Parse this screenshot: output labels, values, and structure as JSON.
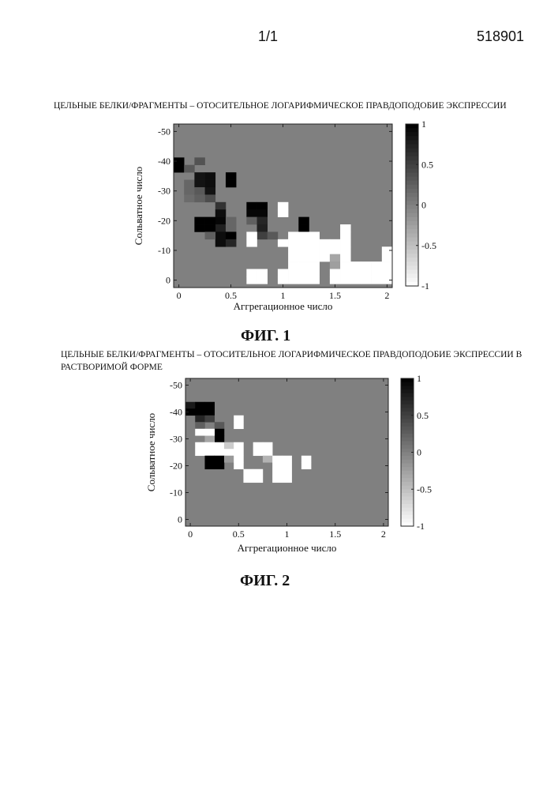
{
  "header": {
    "page_number": "1/1",
    "document_number": "518901"
  },
  "chart_data": [
    {
      "type": "heatmap",
      "title": "ЦЕЛЬНЫЕ БЕЛКИ/ФРАГМЕНТЫ – ОТОСИТЕЛЬНОЕ ЛОГАРИФМИЧЕСКОЕ ПРАВДОПОДОБИЕ ЭКСПРЕССИИ",
      "figure_label": "ФИГ. 1",
      "xlabel": "Аггрегационное число",
      "ylabel": "Сольватное число",
      "xlim": [
        -0.05,
        2.05
      ],
      "ylim": [
        -52.5,
        2.5
      ],
      "x_ticks": [
        "0",
        "0.5",
        "1",
        "1.5",
        "2"
      ],
      "x_tick_values": [
        0,
        0.5,
        1,
        1.5,
        2
      ],
      "y_ticks": [
        "-50",
        "-40",
        "-30",
        "-20",
        "-10",
        "0"
      ],
      "y_tick_values": [
        -50,
        -40,
        -30,
        -20,
        -10,
        0
      ],
      "colorbar_ticks": [
        "1",
        "0.5",
        "0",
        "-0.5",
        "-1"
      ],
      "colorbar_tick_values": [
        1,
        0.5,
        0,
        -0.5,
        -1
      ],
      "clim": [
        -1,
        1
      ],
      "background_value": 0,
      "cell_size": {
        "x": 0.1,
        "y": 2.5
      },
      "cells": [
        {
          "x": 0,
          "y": -40,
          "v": 1
        },
        {
          "x": 0,
          "y": -37.5,
          "v": 1
        },
        {
          "x": 0.1,
          "y": -37.5,
          "v": 0.3
        },
        {
          "x": 0.2,
          "y": -40,
          "v": 0.35
        },
        {
          "x": 0.1,
          "y": -32.5,
          "v": 0.2
        },
        {
          "x": 0.1,
          "y": -30,
          "v": 0.2
        },
        {
          "x": 0.1,
          "y": -27.5,
          "v": 0.15
        },
        {
          "x": 0.2,
          "y": -35,
          "v": 0.85
        },
        {
          "x": 0.2,
          "y": -32.5,
          "v": 0.85
        },
        {
          "x": 0.2,
          "y": -30,
          "v": 0.3
        },
        {
          "x": 0.3,
          "y": -35,
          "v": 0.9
        },
        {
          "x": 0.3,
          "y": -32.5,
          "v": 0.9
        },
        {
          "x": 0.3,
          "y": -30,
          "v": 0.85
        },
        {
          "x": 0.3,
          "y": -27.5,
          "v": 0.4
        },
        {
          "x": 0.2,
          "y": -27.5,
          "v": 0.25
        },
        {
          "x": 0.5,
          "y": -35,
          "v": 1
        },
        {
          "x": 0.5,
          "y": -32.5,
          "v": 1
        },
        {
          "x": 0.4,
          "y": -25,
          "v": 0.6
        },
        {
          "x": 0.4,
          "y": -22.5,
          "v": 0.9
        },
        {
          "x": 0.4,
          "y": -20,
          "v": 0.95
        },
        {
          "x": 0.4,
          "y": -17.5,
          "v": 0.75
        },
        {
          "x": 0.2,
          "y": -20,
          "v": 1
        },
        {
          "x": 0.2,
          "y": -17.5,
          "v": 1
        },
        {
          "x": 0.3,
          "y": -20,
          "v": 1
        },
        {
          "x": 0.3,
          "y": -17.5,
          "v": 1
        },
        {
          "x": 0.5,
          "y": -20,
          "v": 0.2
        },
        {
          "x": 0.5,
          "y": -17.5,
          "v": 0.2
        },
        {
          "x": 0.4,
          "y": -15,
          "v": 0.9
        },
        {
          "x": 0.4,
          "y": -12.5,
          "v": 0.9
        },
        {
          "x": 0.5,
          "y": -15,
          "v": 1
        },
        {
          "x": 0.5,
          "y": -12.5,
          "v": 0.7
        },
        {
          "x": 0.3,
          "y": -15,
          "v": 0.25
        },
        {
          "x": 0.7,
          "y": -25,
          "v": 1
        },
        {
          "x": 0.8,
          "y": -25,
          "v": 1
        },
        {
          "x": 0.7,
          "y": -22.5,
          "v": 0.95
        },
        {
          "x": 0.8,
          "y": -22.5,
          "v": 0.95
        },
        {
          "x": 0.7,
          "y": -20,
          "v": 0.25
        },
        {
          "x": 0.8,
          "y": -20,
          "v": 0.7
        },
        {
          "x": 0.8,
          "y": -17.5,
          "v": 0.75
        },
        {
          "x": 0.8,
          "y": -15,
          "v": 0.5
        },
        {
          "x": 0.9,
          "y": -15,
          "v": 0.3
        },
        {
          "x": 0.7,
          "y": -15,
          "v": -1
        },
        {
          "x": 0.7,
          "y": -12.5,
          "v": -1
        },
        {
          "x": 1.0,
          "y": -25,
          "v": -1
        },
        {
          "x": 1.0,
          "y": -22.5,
          "v": -1
        },
        {
          "x": 1.2,
          "y": -20,
          "v": 1
        },
        {
          "x": 1.2,
          "y": -17.5,
          "v": 1
        },
        {
          "x": 1.0,
          "y": -12.5,
          "v": -1
        },
        {
          "x": 1.1,
          "y": -15,
          "v": -1
        },
        {
          "x": 1.1,
          "y": -12.5,
          "v": -1
        },
        {
          "x": 1.1,
          "y": -10,
          "v": -1
        },
        {
          "x": 1.1,
          "y": -7.5,
          "v": -1
        },
        {
          "x": 1.1,
          "y": -5,
          "v": -1
        },
        {
          "x": 1.1,
          "y": -2.5,
          "v": -1
        },
        {
          "x": 1.1,
          "y": 0,
          "v": -1
        },
        {
          "x": 1.2,
          "y": -15,
          "v": -1
        },
        {
          "x": 1.2,
          "y": -12.5,
          "v": -1
        },
        {
          "x": 1.2,
          "y": -10,
          "v": -1
        },
        {
          "x": 1.2,
          "y": -7.5,
          "v": -1
        },
        {
          "x": 1.2,
          "y": -5,
          "v": -1
        },
        {
          "x": 1.2,
          "y": -2.5,
          "v": -1
        },
        {
          "x": 1.2,
          "y": 0,
          "v": -1
        },
        {
          "x": 1.3,
          "y": -15,
          "v": -1
        },
        {
          "x": 1.3,
          "y": -12.5,
          "v": -1
        },
        {
          "x": 1.3,
          "y": -10,
          "v": -1
        },
        {
          "x": 1.3,
          "y": -7.5,
          "v": -1
        },
        {
          "x": 1.3,
          "y": -5,
          "v": -1
        },
        {
          "x": 1.3,
          "y": -2.5,
          "v": -1
        },
        {
          "x": 1.3,
          "y": 0,
          "v": -1
        },
        {
          "x": 1.4,
          "y": -12.5,
          "v": -1
        },
        {
          "x": 1.4,
          "y": -10,
          "v": -1
        },
        {
          "x": 1.4,
          "y": -7.5,
          "v": -1
        },
        {
          "x": 1.5,
          "y": -12.5,
          "v": -1
        },
        {
          "x": 1.5,
          "y": -10,
          "v": -1
        },
        {
          "x": 1.5,
          "y": -7.5,
          "v": -0.3
        },
        {
          "x": 1.5,
          "y": -5,
          "v": -0.25
        },
        {
          "x": 1.5,
          "y": -2.5,
          "v": -1
        },
        {
          "x": 1.5,
          "y": 0,
          "v": -1
        },
        {
          "x": 1.6,
          "y": -12.5,
          "v": -1
        },
        {
          "x": 1.6,
          "y": -10,
          "v": -1
        },
        {
          "x": 1.6,
          "y": -7.5,
          "v": -1
        },
        {
          "x": 1.6,
          "y": -5,
          "v": -1
        },
        {
          "x": 1.6,
          "y": -2.5,
          "v": -1
        },
        {
          "x": 1.6,
          "y": 0,
          "v": -1
        },
        {
          "x": 1.6,
          "y": -15,
          "v": -1
        },
        {
          "x": 1.6,
          "y": -17.5,
          "v": -1
        },
        {
          "x": 1.7,
          "y": -5,
          "v": -1
        },
        {
          "x": 1.7,
          "y": -2.5,
          "v": -1
        },
        {
          "x": 1.7,
          "y": 0,
          "v": -1
        },
        {
          "x": 1.8,
          "y": -5,
          "v": -1
        },
        {
          "x": 1.8,
          "y": -2.5,
          "v": -1
        },
        {
          "x": 1.8,
          "y": 0,
          "v": -1
        },
        {
          "x": 1.9,
          "y": -5,
          "v": -1
        },
        {
          "x": 1.9,
          "y": -2.5,
          "v": -1
        },
        {
          "x": 1.9,
          "y": 0,
          "v": -1
        },
        {
          "x": 2.0,
          "y": -10,
          "v": -1
        },
        {
          "x": 2.0,
          "y": -7.5,
          "v": -1
        },
        {
          "x": 2.0,
          "y": -5,
          "v": -1
        },
        {
          "x": 2.0,
          "y": -2.5,
          "v": -1
        },
        {
          "x": 2.0,
          "y": 0,
          "v": -1
        },
        {
          "x": 0.7,
          "y": -2.5,
          "v": -1
        },
        {
          "x": 0.8,
          "y": -2.5,
          "v": -1
        },
        {
          "x": 0.7,
          "y": 0,
          "v": -1
        },
        {
          "x": 0.8,
          "y": 0,
          "v": -1
        },
        {
          "x": 1.0,
          "y": -2.5,
          "v": -1
        },
        {
          "x": 1.0,
          "y": 0,
          "v": -1
        }
      ]
    },
    {
      "type": "heatmap",
      "title": "ЦЕЛЬНЫЕ БЕЛКИ/ФРАГМЕНТЫ – ОТОСИТЕЛЬНОЕ ЛОГАРИФМИЧЕСКОЕ ПРАВДОПОДОБИЕ ЭКСПРЕССИИ В РАСТВОРИМОЙ ФОРМЕ",
      "figure_label": "ФИГ. 2",
      "xlabel": "Аггрегационное число",
      "ylabel": "Сольватное число",
      "xlim": [
        -0.05,
        2.05
      ],
      "ylim": [
        -52.5,
        2.5
      ],
      "x_ticks": [
        "0",
        "0.5",
        "1",
        "1.5",
        "2"
      ],
      "x_tick_values": [
        0,
        0.5,
        1,
        1.5,
        2
      ],
      "y_ticks": [
        "-50",
        "-40",
        "-30",
        "-20",
        "-10",
        "0"
      ],
      "y_tick_values": [
        -50,
        -40,
        -30,
        -20,
        -10,
        0
      ],
      "colorbar_ticks": [
        "1",
        "0.5",
        "0",
        "-0.5",
        "-1"
      ],
      "colorbar_tick_values": [
        1,
        0.5,
        0,
        -0.5,
        -1
      ],
      "clim": [
        -1,
        1
      ],
      "background_value": 0,
      "cell_size": {
        "x": 0.1,
        "y": 2.5
      },
      "cells": [
        {
          "x": 0,
          "y": -42.5,
          "v": 0.8
        },
        {
          "x": 0,
          "y": -40,
          "v": 1
        },
        {
          "x": 0.1,
          "y": -42.5,
          "v": 1
        },
        {
          "x": 0.1,
          "y": -40,
          "v": 1
        },
        {
          "x": 0.1,
          "y": -37.5,
          "v": 0.7
        },
        {
          "x": 0.2,
          "y": -42.5,
          "v": 1
        },
        {
          "x": 0.2,
          "y": -40,
          "v": 1
        },
        {
          "x": 0.2,
          "y": -37.5,
          "v": 0.5
        },
        {
          "x": 0.1,
          "y": -35,
          "v": 0.25
        },
        {
          "x": 0.3,
          "y": -35,
          "v": 0.3
        },
        {
          "x": 0.3,
          "y": -32.5,
          "v": 1
        },
        {
          "x": 0.3,
          "y": -30,
          "v": 1
        },
        {
          "x": 0.2,
          "y": -30,
          "v": -0.3
        },
        {
          "x": 0.2,
          "y": -32.5,
          "v": -1
        },
        {
          "x": 0.1,
          "y": -32.5,
          "v": -1
        },
        {
          "x": 0.5,
          "y": -37.5,
          "v": -1
        },
        {
          "x": 0.5,
          "y": -35,
          "v": -1
        },
        {
          "x": 0.1,
          "y": -27.5,
          "v": -1
        },
        {
          "x": 0.1,
          "y": -25,
          "v": -1
        },
        {
          "x": 0.2,
          "y": -27.5,
          "v": -1
        },
        {
          "x": 0.2,
          "y": -25,
          "v": -1
        },
        {
          "x": 0.3,
          "y": -27.5,
          "v": -1
        },
        {
          "x": 0.3,
          "y": -25,
          "v": -1
        },
        {
          "x": 0.4,
          "y": -27.5,
          "v": -0.6
        },
        {
          "x": 0.4,
          "y": -25,
          "v": -1
        },
        {
          "x": 0.2,
          "y": -22.5,
          "v": 1
        },
        {
          "x": 0.2,
          "y": -20,
          "v": 1
        },
        {
          "x": 0.3,
          "y": -22.5,
          "v": 1
        },
        {
          "x": 0.3,
          "y": -20,
          "v": 1
        },
        {
          "x": 0.4,
          "y": -22.5,
          "v": -0.2
        },
        {
          "x": 0.5,
          "y": -27.5,
          "v": -1
        },
        {
          "x": 0.5,
          "y": -25,
          "v": -1
        },
        {
          "x": 0.5,
          "y": -22.5,
          "v": -1
        },
        {
          "x": 0.5,
          "y": -20,
          "v": -1
        },
        {
          "x": 0.6,
          "y": -17.5,
          "v": -1
        },
        {
          "x": 0.6,
          "y": -15,
          "v": -1
        },
        {
          "x": 0.7,
          "y": -17.5,
          "v": -1
        },
        {
          "x": 0.7,
          "y": -15,
          "v": -1
        },
        {
          "x": 0.7,
          "y": -27.5,
          "v": -1
        },
        {
          "x": 0.7,
          "y": -25,
          "v": -1
        },
        {
          "x": 0.8,
          "y": -27.5,
          "v": -1
        },
        {
          "x": 0.8,
          "y": -25,
          "v": -1
        },
        {
          "x": 0.8,
          "y": -22.5,
          "v": -0.4
        },
        {
          "x": 0.9,
          "y": -22.5,
          "v": -1
        },
        {
          "x": 0.9,
          "y": -20,
          "v": -1
        },
        {
          "x": 0.9,
          "y": -17.5,
          "v": -1
        },
        {
          "x": 0.9,
          "y": -15,
          "v": -1
        },
        {
          "x": 1.0,
          "y": -22.5,
          "v": -1
        },
        {
          "x": 1.0,
          "y": -20,
          "v": -1
        },
        {
          "x": 1.0,
          "y": -17.5,
          "v": -1
        },
        {
          "x": 1.0,
          "y": -15,
          "v": -1
        },
        {
          "x": 1.2,
          "y": -22.5,
          "v": -1
        },
        {
          "x": 1.2,
          "y": -20,
          "v": -1
        }
      ]
    }
  ]
}
